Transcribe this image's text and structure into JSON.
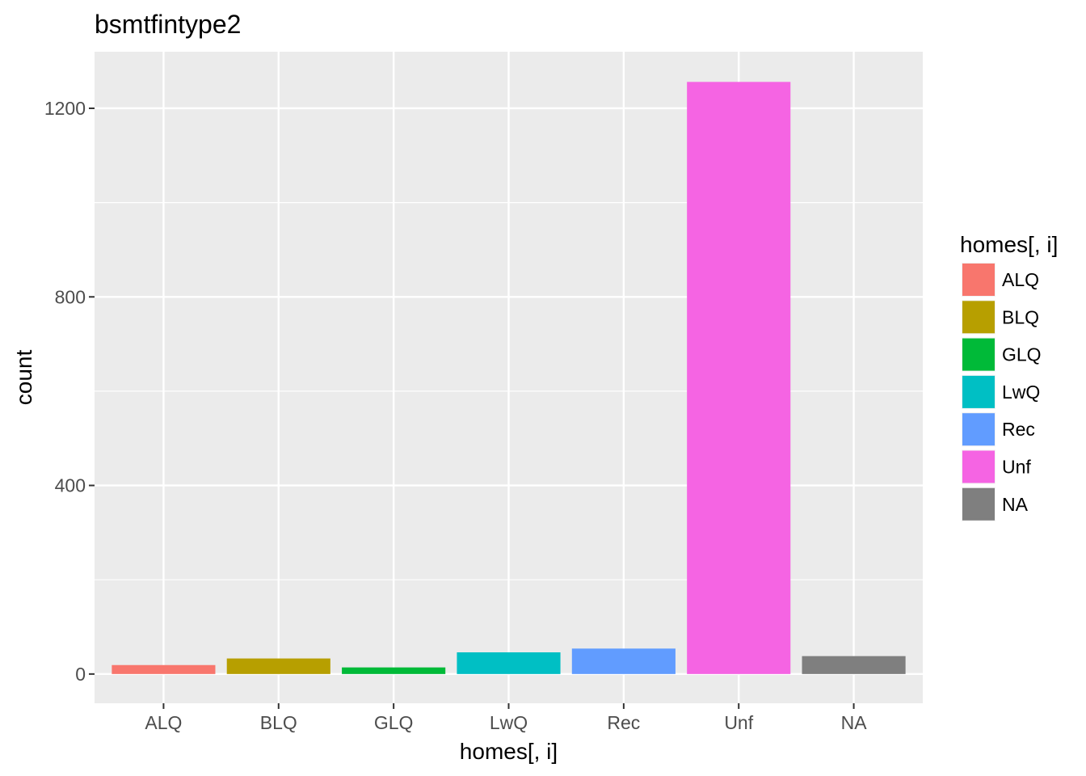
{
  "chart_data": {
    "type": "bar",
    "title": "bsmtfintype2",
    "xlabel": "homes[, i]",
    "ylabel": "count",
    "categories": [
      "ALQ",
      "BLQ",
      "GLQ",
      "LwQ",
      "Rec",
      "Unf",
      "NA"
    ],
    "values": [
      19,
      33,
      14,
      46,
      54,
      1256,
      38
    ],
    "colors": [
      "#F8766D",
      "#B79F00",
      "#00BA38",
      "#00BFC4",
      "#619CFF",
      "#F564E3",
      "#7F7F7F"
    ],
    "ylim": [
      -62,
      1320
    ],
    "yticks": [
      0,
      400,
      800,
      1200
    ],
    "ytick_labels": [
      "0",
      "400",
      "800",
      "1200"
    ],
    "grid": true,
    "legend": {
      "title": "homes[, i]",
      "position": "right",
      "items": [
        "ALQ",
        "BLQ",
        "GLQ",
        "LwQ",
        "Rec",
        "Unf",
        "NA"
      ]
    },
    "panel_background": "#EBEBEB",
    "grid_color": "#FFFFFF"
  }
}
